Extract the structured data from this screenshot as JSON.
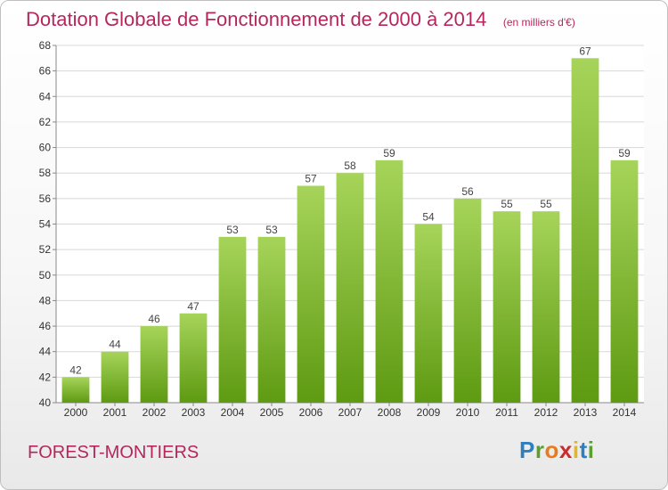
{
  "title": "Dotation Globale de Fonctionnement de 2000 à 2014",
  "unit": "(en milliers d'€)",
  "location": "FOREST-MONTIERS",
  "logo": {
    "text": "Proxiti",
    "letters": [
      {
        "char": "P",
        "color": "#2f7fbf"
      },
      {
        "char": "r",
        "color": "#5aa02c"
      },
      {
        "char": "o",
        "color": "#e87b1e"
      },
      {
        "char": "x",
        "color": "#cc2b2b"
      },
      {
        "char": "i",
        "color": "#e8b51e"
      },
      {
        "char": "t",
        "color": "#2f7fbf"
      },
      {
        "char": "i",
        "color": "#5aa02c"
      }
    ]
  },
  "colors": {
    "bar_top": "#a6d45a",
    "bar_bottom": "#5e9a12",
    "accent": "#b5275c",
    "grid": "#d8d8d8"
  },
  "chart_data": {
    "type": "bar",
    "title": "Dotation Globale de Fonctionnement de 2000 à 2014",
    "subtitle": "(en milliers d'€)",
    "xlabel": "",
    "ylabel": "",
    "categories": [
      "2000",
      "2001",
      "2002",
      "2003",
      "2004",
      "2005",
      "2006",
      "2007",
      "2008",
      "2009",
      "2010",
      "2011",
      "2012",
      "2013",
      "2014"
    ],
    "values": [
      42,
      44,
      46,
      47,
      53,
      53,
      57,
      58,
      59,
      54,
      56,
      55,
      55,
      67,
      59
    ],
    "ylim": [
      40,
      68
    ],
    "yticks": [
      40,
      42,
      44,
      46,
      48,
      50,
      52,
      54,
      56,
      58,
      60,
      62,
      64,
      66,
      68
    ],
    "grid": true,
    "data_labels": true
  }
}
